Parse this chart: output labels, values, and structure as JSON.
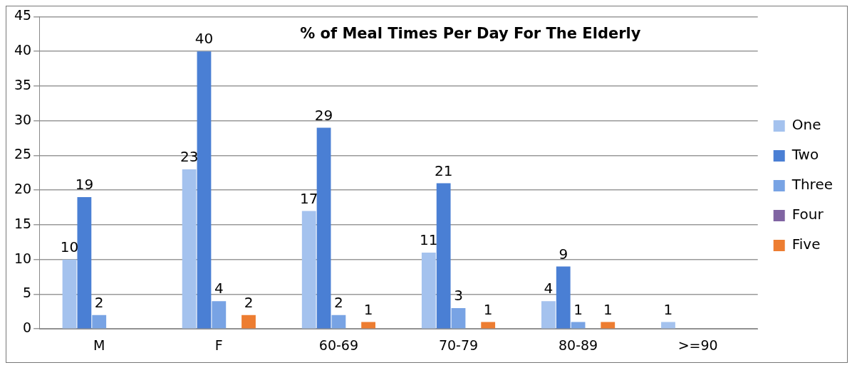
{
  "chart_data": {
    "type": "bar",
    "title": "% of Meal Times Per Day For The Elderly",
    "categories": [
      "M",
      "F",
      "60-69",
      "70-79",
      "80-89",
      ">=90"
    ],
    "series": [
      {
        "name": "One",
        "color": "#a4c2ee",
        "values": [
          10,
          23,
          17,
          11,
          4,
          1
        ]
      },
      {
        "name": "Two",
        "color": "#4a7fd4",
        "values": [
          19,
          40,
          29,
          21,
          9,
          null
        ]
      },
      {
        "name": "Three",
        "color": "#78a3e4",
        "values": [
          2,
          4,
          2,
          3,
          1,
          null
        ]
      },
      {
        "name": "Four",
        "color": "#8064a2",
        "values": [
          null,
          null,
          null,
          null,
          null,
          null
        ]
      },
      {
        "name": "Five",
        "color": "#ed7d31",
        "values": [
          null,
          2,
          1,
          1,
          1,
          null
        ]
      }
    ],
    "ylim": [
      0,
      45
    ],
    "yticks": [
      0,
      5,
      10,
      15,
      20,
      25,
      30,
      35,
      40,
      45
    ],
    "grid": "y",
    "legend": "right",
    "data_labels": true
  }
}
